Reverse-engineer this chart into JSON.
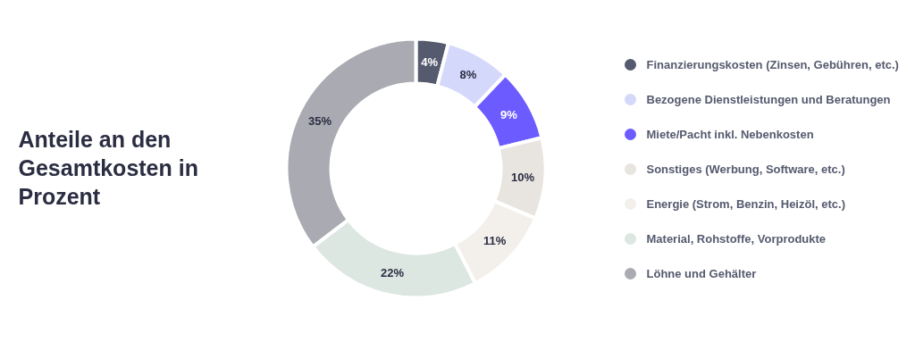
{
  "chart_data": {
    "type": "donut",
    "title": "Anteile an den Gesamtkosten in Prozent",
    "categories": [
      "Finanzierungskosten (Zinsen, Gebühren, etc.)",
      "Bezogene Dienstleistungen und Beratungen",
      "Miete/Pacht inkl. Nebenkosten",
      "Sonstiges (Werbung, Software, etc.)",
      "Energie (Strom, Benzin, Heizöl, etc.)",
      "Material, Rohstoffe, Vorprodukte",
      "Löhne und Gehälter"
    ],
    "values": [
      4,
      8,
      9,
      10,
      11,
      22,
      35
    ],
    "colors": [
      "#555a6e",
      "#d4d8fb",
      "#6c5cff",
      "#e8e4df",
      "#f3f0ec",
      "#dce7e2",
      "#a9aab2"
    ],
    "value_labels": [
      "4%",
      "8%",
      "9%",
      "10%",
      "11%",
      "22%",
      "35%"
    ],
    "legend": "right"
  }
}
